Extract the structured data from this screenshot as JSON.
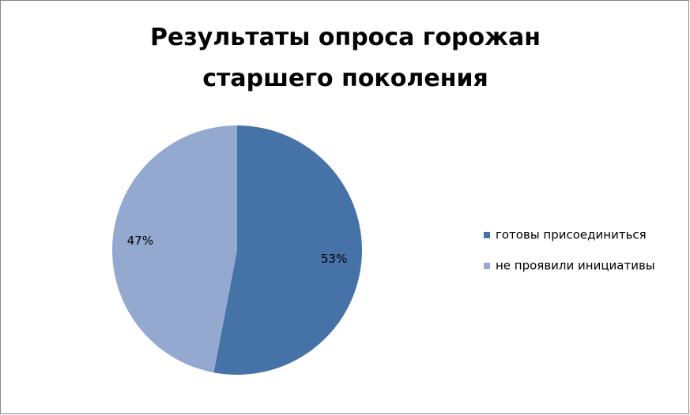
{
  "chart_data": {
    "type": "pie",
    "title": "Результаты опроса горожан старшего поколения",
    "categories": [
      "готовы присоединиться",
      "не проявили инициативы"
    ],
    "values": [
      53,
      47
    ],
    "value_labels": [
      "53%",
      "47%"
    ],
    "colors": [
      "#4572A7",
      "#93A9CF"
    ],
    "legend": "right"
  }
}
